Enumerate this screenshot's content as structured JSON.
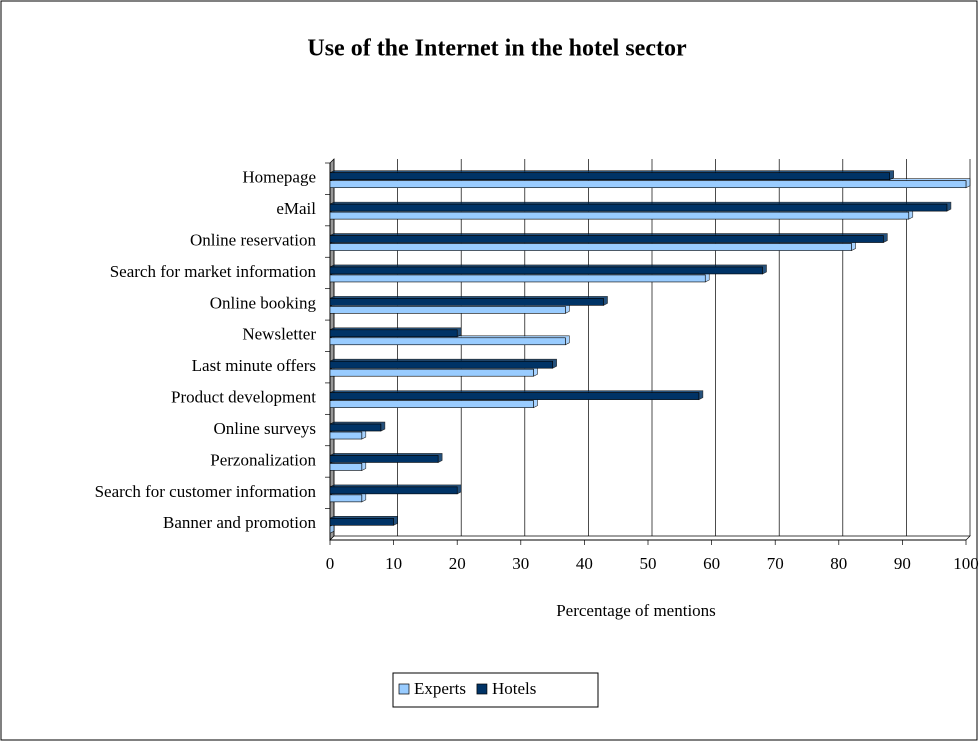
{
  "chart_data": {
    "type": "bar",
    "orientation": "horizontal",
    "title": "Use of the Internet in the hotel sector",
    "x_label": "Percentage of mentions",
    "categories": [
      "Homepage",
      "eMail",
      "Online reservation",
      "Search for market information",
      "Online booking",
      "Newsletter",
      "Last minute offers",
      "Product development",
      "Online surveys",
      "Perzonalization",
      "Search for customer information",
      "Banner and promotion"
    ],
    "series": [
      {
        "name": "Experts",
        "color": "#99ccff",
        "values": [
          100,
          91,
          82,
          59,
          37,
          37,
          32,
          32,
          5,
          5,
          5,
          0
        ]
      },
      {
        "name": "Hotels",
        "color": "#003366",
        "values": [
          88,
          97,
          87,
          68,
          43,
          20,
          35,
          58,
          8,
          17,
          20,
          10
        ]
      }
    ],
    "xlim": [
      0,
      100
    ],
    "xticks": [
      0,
      10,
      20,
      30,
      40,
      50,
      60,
      70,
      80,
      90,
      100
    ],
    "grid": true,
    "legend": "bottom"
  }
}
